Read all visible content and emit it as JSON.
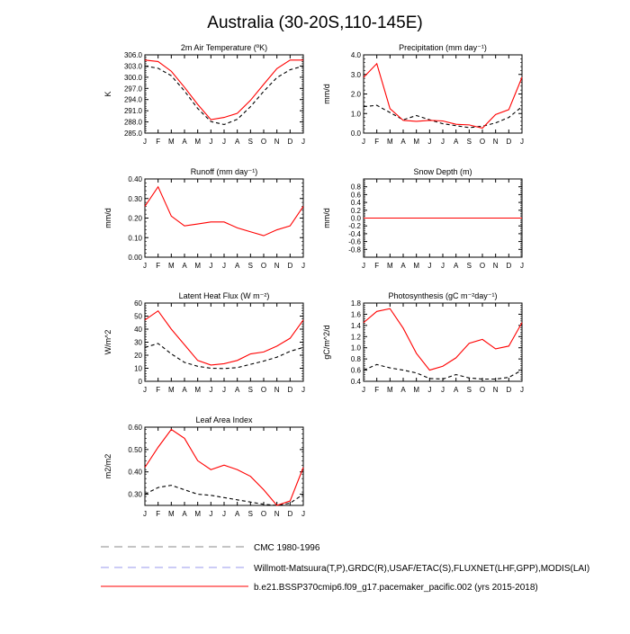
{
  "title": "Australia (30-20S,110-145E)",
  "months": [
    "J",
    "F",
    "M",
    "A",
    "M",
    "J",
    "J",
    "A",
    "S",
    "O",
    "N",
    "D",
    "J"
  ],
  "colors": {
    "model": "#ff0000",
    "obs": "#000000",
    "cmc": "#888888",
    "obs_legend": "#9999ee",
    "axis": "#000000"
  },
  "chart_data": [
    {
      "type": "line",
      "title": "2m Air Temperature (ºK)",
      "ylabel": "K",
      "ylim": [
        285.0,
        306.0
      ],
      "yticks": [
        285.0,
        288.0,
        291.0,
        294.0,
        297.0,
        300.0,
        303.0,
        306.0
      ],
      "ytick_labels": [
        "285.0",
        "288.0",
        "291.0",
        "294.0",
        "297.0",
        "300.0",
        "303.0",
        "306.0"
      ],
      "series": [
        {
          "role": "model",
          "values": [
            304.6,
            304.2,
            301.6,
            297.3,
            292.7,
            288.6,
            289.2,
            290.3,
            293.8,
            298.1,
            302.3,
            304.6,
            304.6
          ]
        },
        {
          "role": "obs",
          "values": [
            303.0,
            302.4,
            300.4,
            296.3,
            291.6,
            288.1,
            287.3,
            288.7,
            292.1,
            296.2,
            299.9,
            302.0,
            303.0
          ]
        }
      ]
    },
    {
      "type": "line",
      "title": "Precipitation (mm day⁻¹)",
      "ylabel": "mm/d",
      "ylim": [
        0.0,
        4.0
      ],
      "yticks": [
        0.0,
        1.0,
        2.0,
        3.0,
        4.0
      ],
      "ytick_labels": [
        "0.0",
        "1.0",
        "2.0",
        "3.0",
        "4.0"
      ],
      "series": [
        {
          "role": "model",
          "values": [
            2.85,
            3.55,
            1.25,
            0.65,
            0.6,
            0.65,
            0.62,
            0.45,
            0.42,
            0.25,
            0.95,
            1.2,
            2.85
          ]
        },
        {
          "role": "obs",
          "values": [
            1.35,
            1.42,
            1.05,
            0.68,
            0.9,
            0.68,
            0.48,
            0.38,
            0.28,
            0.35,
            0.52,
            0.8,
            1.35
          ]
        }
      ]
    },
    {
      "type": "line",
      "title": "Runoff (mm day⁻¹)",
      "ylabel": "mm/d",
      "ylim": [
        0.0,
        0.4
      ],
      "yticks": [
        0.0,
        0.1,
        0.2,
        0.3,
        0.4
      ],
      "ytick_labels": [
        "0.00",
        "0.10",
        "0.20",
        "0.30",
        "0.40"
      ],
      "series": [
        {
          "role": "model",
          "values": [
            0.26,
            0.36,
            0.21,
            0.16,
            0.17,
            0.18,
            0.18,
            0.15,
            0.13,
            0.11,
            0.14,
            0.16,
            0.26
          ]
        }
      ]
    },
    {
      "type": "line",
      "title": "Snow Depth (m)",
      "ylabel": "mm/d",
      "ylim": [
        -1.0,
        1.0
      ],
      "yticks": [
        -0.8,
        -0.6,
        -0.4,
        -0.2,
        0.0,
        0.2,
        0.4,
        0.6,
        0.8
      ],
      "ytick_labels": [
        "-0.8",
        "-0.6",
        "-0.4",
        "-0.2",
        "0.0",
        "0.2",
        "0.4",
        "0.6",
        "0.8"
      ],
      "series": [
        {
          "role": "model",
          "values": [
            0,
            0,
            0,
            0,
            0,
            0,
            0,
            0,
            0,
            0,
            0,
            0,
            0
          ]
        },
        {
          "role": "obs",
          "values": [
            0,
            0,
            0,
            0,
            0,
            0,
            0,
            0,
            0,
            0,
            0,
            0,
            0
          ]
        }
      ]
    },
    {
      "type": "line",
      "title": "Latent Heat Flux (W m⁻²)",
      "ylabel": "W/m^2",
      "ylim": [
        0,
        60
      ],
      "yticks": [
        0,
        10,
        20,
        30,
        40,
        50,
        60
      ],
      "ytick_labels": [
        "0",
        "10",
        "20",
        "30",
        "40",
        "50",
        "60"
      ],
      "series": [
        {
          "role": "model",
          "values": [
            47,
            54,
            40,
            28,
            16,
            12.5,
            13.5,
            16,
            21,
            22.5,
            27,
            33,
            47
          ]
        },
        {
          "role": "obs",
          "values": [
            26,
            29,
            21,
            14.5,
            11.5,
            10,
            9.8,
            10.5,
            13,
            15.5,
            18.5,
            23,
            26
          ]
        }
      ]
    },
    {
      "type": "line",
      "title": "Photosynthesis (gC m⁻²day⁻¹)",
      "ylabel": "gC/m^2/d",
      "ylim": [
        0.4,
        1.8
      ],
      "yticks": [
        0.4,
        0.6,
        0.8,
        1.0,
        1.2,
        1.4,
        1.6,
        1.8
      ],
      "ytick_labels": [
        "0.4",
        "0.6",
        "0.8",
        "1.0",
        "1.2",
        "1.4",
        "1.6",
        "1.8"
      ],
      "series": [
        {
          "role": "model",
          "values": [
            1.45,
            1.65,
            1.7,
            1.35,
            0.9,
            0.6,
            0.67,
            0.82,
            1.08,
            1.15,
            0.98,
            1.03,
            1.45
          ]
        },
        {
          "role": "obs",
          "values": [
            0.6,
            0.7,
            0.64,
            0.6,
            0.55,
            0.45,
            0.44,
            0.52,
            0.46,
            0.44,
            0.44,
            0.47,
            0.6
          ]
        }
      ]
    },
    {
      "type": "line",
      "title": "Leaf Area Index",
      "ylabel": "m2/m2",
      "ylim": [
        0.25,
        0.6
      ],
      "yticks": [
        0.3,
        0.4,
        0.5,
        0.6
      ],
      "ytick_labels": [
        "0.30",
        "0.40",
        "0.50",
        "0.60"
      ],
      "series": [
        {
          "role": "model",
          "values": [
            0.42,
            0.51,
            0.59,
            0.55,
            0.45,
            0.41,
            0.43,
            0.41,
            0.38,
            0.32,
            0.25,
            0.27,
            0.42
          ]
        },
        {
          "role": "obs",
          "values": [
            0.3,
            0.33,
            0.34,
            0.32,
            0.3,
            0.295,
            0.285,
            0.275,
            0.265,
            0.255,
            0.25,
            0.26,
            0.3
          ]
        }
      ]
    }
  ],
  "legend": [
    {
      "style": "cmc",
      "label": "CMC 1980-1996"
    },
    {
      "style": "obs_legend",
      "label": "Willmott-Matsuura(T,P),GRDC(R),USAF/ETAC(S),FLUXNET(LHF,GPP),MODIS(LAI)"
    },
    {
      "style": "model",
      "label": "b.e21.BSSP370cmip6.f09_g17.pacemaker_pacific.002 (yrs 2015-2018)"
    }
  ]
}
